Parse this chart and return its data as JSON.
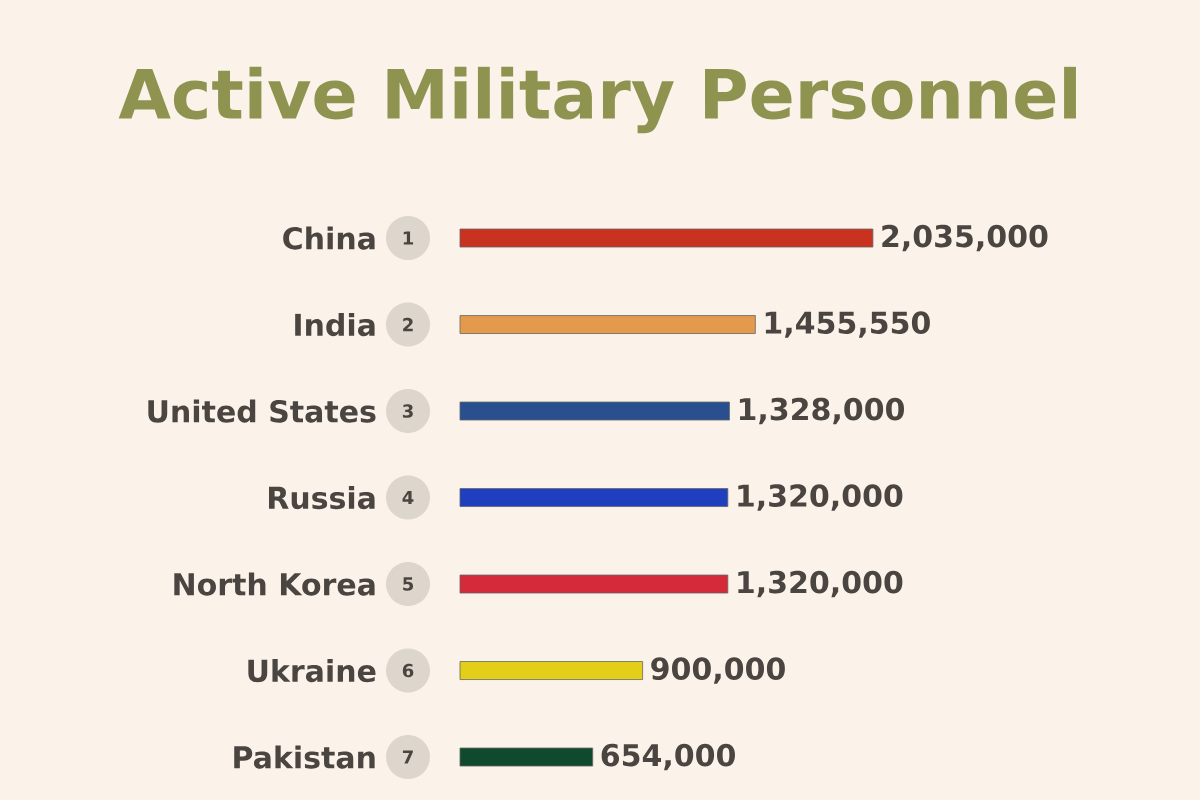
{
  "chart_data": {
    "type": "bar",
    "orientation": "horizontal",
    "title": "Active Military Personnel",
    "categories": [
      "China",
      "India",
      "United States",
      "Russia",
      "North Korea",
      "Ukraine",
      "Pakistan"
    ],
    "values": [
      2035000,
      1455550,
      1328000,
      1320000,
      1320000,
      900000,
      654000
    ],
    "value_labels": [
      "2,035,000",
      "1,455,550",
      "1,328,000",
      "1,320,000",
      "1,320,000",
      "900,000",
      "654,000"
    ],
    "colors": [
      "#c8321f",
      "#e39a4c",
      "#2a4f8f",
      "#1f3fbf",
      "#d42a3a",
      "#e3cf1a",
      "#0f4a2c"
    ],
    "annotations": [
      "1",
      "2",
      "3",
      "4",
      "5",
      "6",
      "7"
    ]
  }
}
